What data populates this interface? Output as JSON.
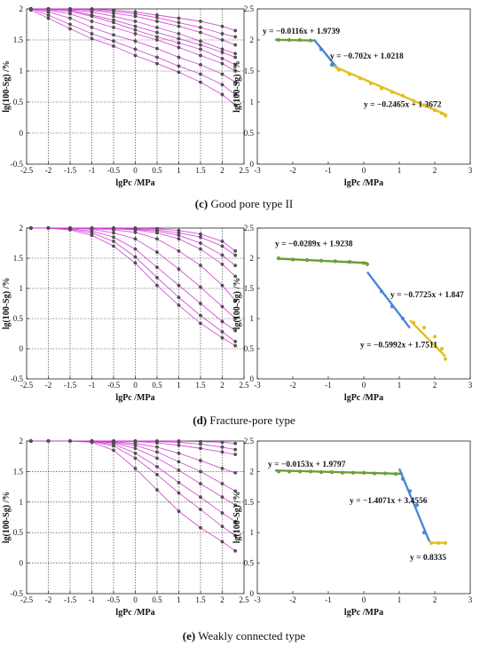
{
  "captions": [
    {
      "letter": "(c)",
      "text": " Good pore type II"
    },
    {
      "letter": "(d)",
      "text": " Fracture-pore type"
    },
    {
      "letter": "(e)",
      "text": " Weakly connected type"
    }
  ],
  "colors": {
    "curves": "#cc33cc",
    "points": "#555555",
    "seg1": "#6aa033",
    "seg2": "#4a86d8",
    "seg3": "#e0c020",
    "grid": "#333333"
  },
  "chart_data": [
    {
      "id": "c-left",
      "type": "line",
      "xlabel": "lgPc /MPa",
      "ylabel": "lg(100-Sg) /%",
      "xlim": [
        -2.5,
        2.5
      ],
      "ylim": [
        -0.5,
        2
      ],
      "xticks": [
        "-2.5",
        "-2",
        "-1.5",
        "-1",
        "-0.5",
        "0",
        "0.5",
        "1",
        "1.5",
        "2",
        "2.5"
      ],
      "yticks": [
        "-0.5",
        "0",
        "0.5",
        "1",
        "1.5",
        "2"
      ],
      "grid": true,
      "x": [
        -2.4,
        -2.0,
        -1.5,
        -1.0,
        -0.5,
        0.0,
        0.5,
        1.0,
        1.5,
        2.0,
        2.3
      ],
      "series": [
        {
          "values": [
            2.0,
            2.0,
            2.0,
            2.0,
            1.98,
            1.95,
            1.9,
            1.85,
            1.8,
            1.72,
            1.65
          ]
        },
        {
          "values": [
            2.0,
            2.0,
            2.0,
            1.98,
            1.93,
            1.88,
            1.8,
            1.72,
            1.62,
            1.5,
            1.42
          ]
        },
        {
          "values": [
            2.0,
            2.0,
            1.98,
            1.9,
            1.82,
            1.72,
            1.62,
            1.52,
            1.42,
            1.3,
            1.22
          ]
        },
        {
          "values": [
            2.0,
            1.98,
            1.92,
            1.8,
            1.7,
            1.6,
            1.5,
            1.38,
            1.25,
            1.12,
            1.0
          ]
        },
        {
          "values": [
            2.0,
            1.95,
            1.85,
            1.7,
            1.58,
            1.48,
            1.36,
            1.22,
            1.1,
            0.95,
            0.82
          ]
        },
        {
          "values": [
            2.0,
            1.9,
            1.75,
            1.6,
            1.48,
            1.35,
            1.22,
            1.08,
            0.95,
            0.78,
            0.62
          ]
        },
        {
          "values": [
            1.98,
            1.85,
            1.68,
            1.52,
            1.4,
            1.25,
            1.12,
            0.98,
            0.82,
            0.62,
            0.45
          ]
        },
        {
          "values": [
            2.0,
            2.0,
            2.0,
            1.99,
            1.96,
            1.92,
            1.86,
            1.78,
            1.7,
            1.6,
            1.55
          ]
        },
        {
          "values": [
            2.0,
            2.0,
            1.99,
            1.95,
            1.88,
            1.8,
            1.7,
            1.6,
            1.48,
            1.35,
            1.28
          ]
        },
        {
          "values": [
            2.0,
            1.99,
            1.96,
            1.88,
            1.78,
            1.66,
            1.55,
            1.45,
            1.35,
            1.2,
            1.1
          ]
        }
      ]
    },
    {
      "id": "c-right",
      "type": "scatter",
      "xlabel": "lgPc /MPa",
      "ylabel": "lg(100-Sg) /%",
      "xlim": [
        -3,
        3
      ],
      "ylim": [
        0,
        2.5
      ],
      "xticks": [
        "-3",
        "-2",
        "-1",
        "0",
        "1",
        "2",
        "3"
      ],
      "yticks": [
        "0",
        "0.5",
        "1",
        "1.5",
        "2",
        "2.5"
      ],
      "points": [
        {
          "x": -2.4,
          "y": 2.0
        },
        {
          "x": -2.1,
          "y": 2.0
        },
        {
          "x": -1.8,
          "y": 2.0
        },
        {
          "x": -1.5,
          "y": 1.99
        },
        {
          "x": -1.2,
          "y": 1.85
        },
        {
          "x": -0.9,
          "y": 1.6
        },
        {
          "x": -0.7,
          "y": 1.52
        },
        {
          "x": -0.4,
          "y": 1.45
        },
        {
          "x": -0.1,
          "y": 1.38
        },
        {
          "x": 0.2,
          "y": 1.3
        },
        {
          "x": 0.5,
          "y": 1.22
        },
        {
          "x": 0.8,
          "y": 1.16
        },
        {
          "x": 1.1,
          "y": 1.1
        },
        {
          "x": 1.4,
          "y": 1.02
        },
        {
          "x": 1.7,
          "y": 0.95
        },
        {
          "x": 2.0,
          "y": 0.87
        },
        {
          "x": 2.2,
          "y": 0.82
        },
        {
          "x": 2.3,
          "y": 0.78
        }
      ],
      "fits": [
        {
          "slope": -0.0116,
          "intercept": 1.9739,
          "x0": -2.5,
          "x1": -1.4,
          "color": "seg1",
          "label": "y = −0.0116x + 1.9739"
        },
        {
          "slope": -0.702,
          "intercept": 1.0218,
          "x0": -1.4,
          "x1": -0.7,
          "color": "seg2",
          "label": "y = −0.702x + 1.0218"
        },
        {
          "slope": -0.2465,
          "intercept": 1.3672,
          "x0": -0.9,
          "x1": 2.35,
          "color": "seg3",
          "label": "y = −0.2465x + 1.3672"
        }
      ]
    },
    {
      "id": "d-left",
      "type": "line",
      "xlabel": "lgPc /MPa",
      "ylabel": "lg(100-Sg) /%",
      "xlim": [
        -2.5,
        2.5
      ],
      "ylim": [
        -0.5,
        2
      ],
      "xticks": [
        "-2.5",
        "-2",
        "-1.5",
        "-1",
        "-0.5",
        "0",
        "0.5",
        "1",
        "1.5",
        "2",
        "2.5"
      ],
      "yticks": [
        "-0.5",
        "0",
        "0.5",
        "1",
        "1.5",
        "2"
      ],
      "grid": true,
      "x": [
        -2.4,
        -2.0,
        -1.5,
        -1.0,
        -0.5,
        0.0,
        0.5,
        1.0,
        1.5,
        2.0,
        2.3
      ],
      "series": [
        {
          "values": [
            2.0,
            2.0,
            2.0,
            2.0,
            2.0,
            1.99,
            1.97,
            1.92,
            1.85,
            1.7,
            1.55
          ]
        },
        {
          "values": [
            2.0,
            2.0,
            2.0,
            2.0,
            1.99,
            1.97,
            1.92,
            1.82,
            1.65,
            1.4,
            1.2
          ]
        },
        {
          "values": [
            2.0,
            2.0,
            2.0,
            1.99,
            1.97,
            1.93,
            1.82,
            1.62,
            1.38,
            1.05,
            0.8
          ]
        },
        {
          "values": [
            2.0,
            2.0,
            2.0,
            1.98,
            1.92,
            1.82,
            1.6,
            1.32,
            1.02,
            0.7,
            0.5
          ]
        },
        {
          "values": [
            2.0,
            2.0,
            1.99,
            1.95,
            1.85,
            1.65,
            1.35,
            1.05,
            0.75,
            0.45,
            0.3
          ]
        },
        {
          "values": [
            2.0,
            2.0,
            1.98,
            1.92,
            1.78,
            1.52,
            1.18,
            0.85,
            0.55,
            0.28,
            0.12
          ]
        },
        {
          "values": [
            2.0,
            2.0,
            1.97,
            1.88,
            1.7,
            1.42,
            1.05,
            0.72,
            0.42,
            0.18,
            0.05
          ]
        },
        {
          "values": [
            2.0,
            2.0,
            2.0,
            2.0,
            2.0,
            2.0,
            1.99,
            1.96,
            1.9,
            1.78,
            1.62
          ]
        },
        {
          "values": [
            2.0,
            2.0,
            2.0,
            2.0,
            1.99,
            1.98,
            1.95,
            1.88,
            1.75,
            1.55,
            1.38
          ]
        }
      ]
    },
    {
      "id": "d-right",
      "type": "scatter",
      "xlabel": "lgPc /MPa",
      "ylabel": "lg(100-Sg) /%",
      "xlim": [
        -3,
        3
      ],
      "ylim": [
        0,
        2.5
      ],
      "xticks": [
        "-3",
        "-2",
        "-1",
        "0",
        "1",
        "2",
        "3"
      ],
      "yticks": [
        "0",
        "0.5",
        "1",
        "1.5",
        "2",
        "2.5"
      ],
      "points": [
        {
          "x": -2.4,
          "y": 2.0
        },
        {
          "x": -2.0,
          "y": 1.98
        },
        {
          "x": -1.6,
          "y": 1.97
        },
        {
          "x": -1.2,
          "y": 1.96
        },
        {
          "x": -0.8,
          "y": 1.95
        },
        {
          "x": -0.4,
          "y": 1.94
        },
        {
          "x": 0.0,
          "y": 1.92
        },
        {
          "x": 0.1,
          "y": 1.9
        },
        {
          "x": 0.5,
          "y": 1.45
        },
        {
          "x": 0.8,
          "y": 1.2
        },
        {
          "x": 1.1,
          "y": 1.0
        },
        {
          "x": 1.4,
          "y": 0.93
        },
        {
          "x": 1.7,
          "y": 0.85
        },
        {
          "x": 2.0,
          "y": 0.7
        },
        {
          "x": 2.2,
          "y": 0.5
        },
        {
          "x": 2.3,
          "y": 0.33
        }
      ],
      "fits": [
        {
          "slope": -0.0289,
          "intercept": 1.9238,
          "x0": -2.45,
          "x1": 0.1,
          "color": "seg1",
          "label": "y = −0.0289x + 1.9238"
        },
        {
          "slope": -0.7725,
          "intercept": 1.847,
          "x0": 0.1,
          "x1": 1.3,
          "color": "seg2",
          "label": "y = −0.7725x + 1.847"
        },
        {
          "slope": -0.5992,
          "intercept": 1.7511,
          "x0": 1.3,
          "x1": 2.3,
          "color": "seg3",
          "label": "y = −0.5992x + 1.7511"
        }
      ]
    },
    {
      "id": "e-left",
      "type": "line",
      "xlabel": "lgPc /MPa",
      "ylabel": "lg(100-Sg) /%",
      "xlim": [
        -2.5,
        2.5
      ],
      "ylim": [
        -0.5,
        2
      ],
      "xticks": [
        "-2.5",
        "-2",
        "-1.5",
        "-1",
        "-0.5",
        "0",
        "0.5",
        "1",
        "1.5",
        "2",
        "2.5"
      ],
      "yticks": [
        "-0.5",
        "0",
        "0.5",
        "1",
        "1.5",
        "2"
      ],
      "grid": true,
      "x": [
        -2.4,
        -2.0,
        -1.5,
        -1.0,
        -0.5,
        0.0,
        0.5,
        1.0,
        1.5,
        2.0,
        2.3
      ],
      "series": [
        {
          "values": [
            2.0,
            2.0,
            2.0,
            2.0,
            2.0,
            2.0,
            2.0,
            2.0,
            1.99,
            1.98,
            1.96
          ]
        },
        {
          "values": [
            2.0,
            2.0,
            2.0,
            2.0,
            2.0,
            1.99,
            1.97,
            1.93,
            1.88,
            1.82,
            1.78
          ]
        },
        {
          "values": [
            2.0,
            2.0,
            2.0,
            2.0,
            1.99,
            1.96,
            1.9,
            1.8,
            1.68,
            1.55,
            1.48
          ]
        },
        {
          "values": [
            2.0,
            2.0,
            2.0,
            2.0,
            1.97,
            1.88,
            1.72,
            1.52,
            1.3,
            1.08,
            0.95
          ]
        },
        {
          "values": [
            2.0,
            2.0,
            2.0,
            1.99,
            1.92,
            1.72,
            1.45,
            1.15,
            0.88,
            0.6,
            0.45
          ]
        },
        {
          "values": [
            2.0,
            2.0,
            2.0,
            1.98,
            1.85,
            1.55,
            1.2,
            0.85,
            0.58,
            0.35,
            0.2
          ]
        },
        {
          "values": [
            2.0,
            2.0,
            2.0,
            2.0,
            2.0,
            2.0,
            1.99,
            1.98,
            1.95,
            1.9,
            1.86
          ]
        },
        {
          "values": [
            2.0,
            2.0,
            2.0,
            2.0,
            1.98,
            1.93,
            1.82,
            1.66,
            1.5,
            1.3,
            1.18
          ]
        },
        {
          "values": [
            2.0,
            2.0,
            2.0,
            1.99,
            1.95,
            1.8,
            1.58,
            1.32,
            1.08,
            0.82,
            0.68
          ]
        }
      ]
    },
    {
      "id": "e-right",
      "type": "scatter",
      "xlabel": "lgPc /MPa",
      "ylabel": "lg(100-Sg) /%",
      "xlim": [
        -3,
        3
      ],
      "ylim": [
        0,
        2.5
      ],
      "xticks": [
        "-3",
        "-2",
        "-1",
        "0",
        "1",
        "2",
        "3"
      ],
      "yticks": [
        "0",
        "0.5",
        "1",
        "1.5",
        "2",
        "2.5"
      ],
      "points": [
        {
          "x": -2.4,
          "y": 2.0
        },
        {
          "x": -2.1,
          "y": 2.0
        },
        {
          "x": -1.8,
          "y": 2.0
        },
        {
          "x": -1.5,
          "y": 2.0
        },
        {
          "x": -1.2,
          "y": 1.99
        },
        {
          "x": -0.9,
          "y": 1.99
        },
        {
          "x": -0.6,
          "y": 1.98
        },
        {
          "x": -0.3,
          "y": 1.98
        },
        {
          "x": 0.0,
          "y": 1.98
        },
        {
          "x": 0.3,
          "y": 1.97
        },
        {
          "x": 0.6,
          "y": 1.97
        },
        {
          "x": 0.9,
          "y": 1.96
        },
        {
          "x": 1.1,
          "y": 1.88
        },
        {
          "x": 1.3,
          "y": 1.68
        },
        {
          "x": 1.5,
          "y": 1.45
        },
        {
          "x": 1.7,
          "y": 1.0
        },
        {
          "x": 1.9,
          "y": 0.83
        },
        {
          "x": 2.1,
          "y": 0.83
        },
        {
          "x": 2.3,
          "y": 0.83
        }
      ],
      "fits": [
        {
          "slope": -0.0153,
          "intercept": 1.9797,
          "x0": -2.5,
          "x1": 1.1,
          "color": "seg1",
          "label": "y = −0.0153x + 1.9797"
        },
        {
          "slope": -1.4071,
          "intercept": 3.4556,
          "x0": 1.0,
          "x1": 1.85,
          "color": "seg2",
          "label": "y = −1.4071x + 3.4556"
        },
        {
          "slope": 0,
          "intercept": 0.8335,
          "x0": 1.85,
          "x1": 2.3,
          "color": "seg3",
          "label": "y = 0.8335"
        }
      ]
    }
  ]
}
